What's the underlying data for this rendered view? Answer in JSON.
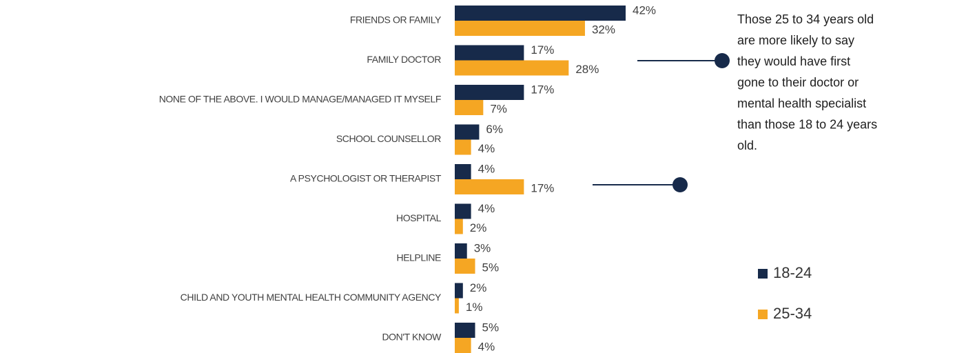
{
  "chart_data": {
    "type": "bar",
    "orientation": "horizontal",
    "categories": [
      "FRIENDS OR FAMILY",
      "FAMILY DOCTOR",
      "NONE OF THE ABOVE. I WOULD MANAGE/MANAGED IT MYSELF",
      "SCHOOL COUNSELLOR",
      "A PSYCHOLOGIST OR THERAPIST",
      "HOSPITAL",
      "HELPLINE",
      "CHILD AND YOUTH MENTAL HEALTH COMMUNITY AGENCY",
      "DON'T KNOW"
    ],
    "series": [
      {
        "name": "18-24",
        "color": "#172a4a",
        "values": [
          42,
          17,
          17,
          6,
          4,
          4,
          3,
          2,
          5
        ],
        "value_labels": [
          "42%",
          "17%",
          "17%",
          "6%",
          "4%",
          "4%",
          "3%",
          "2%",
          "5%"
        ]
      },
      {
        "name": "25-34",
        "color": "#f5a623",
        "values": [
          32,
          28,
          7,
          4,
          17,
          2,
          5,
          1,
          4
        ],
        "value_labels": [
          "32%",
          "28%",
          "7%",
          "4%",
          "17%",
          "2%",
          "5%",
          "1%",
          "4%"
        ]
      }
    ],
    "annotation": [
      "Those 25 to 34 years old",
      "are more likely to say",
      "they would have first",
      "gone to their doctor or",
      "mental health specialist",
      "than those 18 to 24 years",
      "old."
    ],
    "legend": "right"
  }
}
